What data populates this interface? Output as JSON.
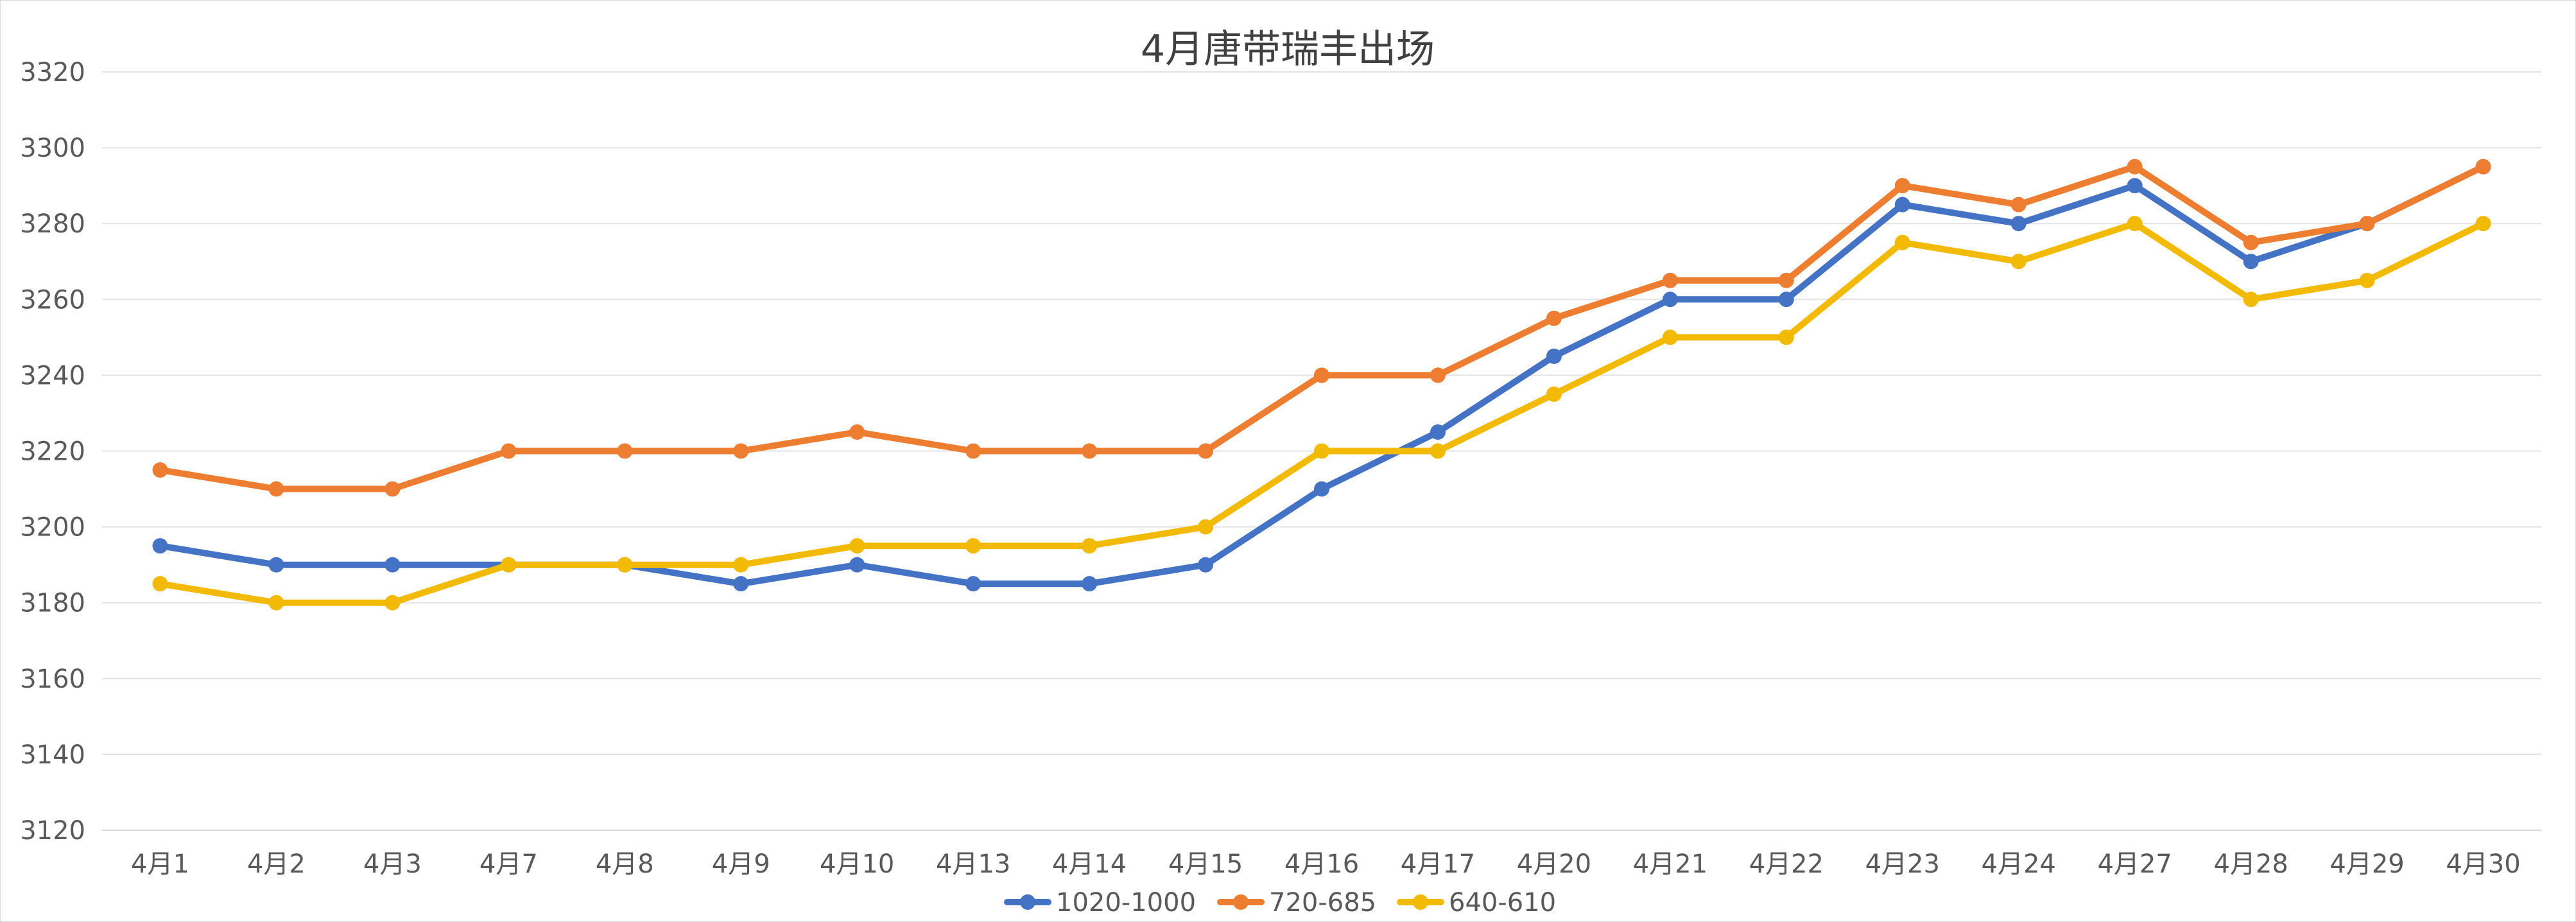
{
  "chart_data": {
    "type": "line",
    "title": "4月唐带瑞丰出场",
    "xlabel": "",
    "ylabel": "",
    "categories": [
      "4月1",
      "4月2",
      "4月3",
      "4月7",
      "4月8",
      "4月9",
      "4月10",
      "4月13",
      "4月14",
      "4月15",
      "4月16",
      "4月17",
      "4月20",
      "4月21",
      "4月22",
      "4月23",
      "4月24",
      "4月27",
      "4月28",
      "4月29",
      "4月30"
    ],
    "ylim": [
      3120,
      3320
    ],
    "yticks": [
      "3120",
      "3140",
      "3160",
      "3180",
      "3200",
      "3220",
      "3240",
      "3260",
      "3280",
      "3300",
      "3320"
    ],
    "grid": true,
    "legend_position": "bottom",
    "series": [
      {
        "name": "1020-1000",
        "color": "#4472C4",
        "values": [
          3195,
          3190,
          3190,
          3190,
          3190,
          3185,
          3190,
          3185,
          3185,
          3190,
          3210,
          3225,
          3245,
          3260,
          3260,
          3285,
          3280,
          3290,
          3270,
          3280,
          3295
        ]
      },
      {
        "name": "720-685",
        "color": "#ED7D31",
        "values": [
          3215,
          3210,
          3210,
          3220,
          3220,
          3220,
          3225,
          3220,
          3220,
          3220,
          3240,
          3240,
          3255,
          3265,
          3265,
          3290,
          3285,
          3295,
          3275,
          3280,
          3295
        ]
      },
      {
        "name": "640-610",
        "color": "#F2BA02",
        "values": [
          3185,
          3180,
          3180,
          3190,
          3190,
          3190,
          3195,
          3195,
          3195,
          3200,
          3220,
          3220,
          3235,
          3250,
          3250,
          3275,
          3270,
          3280,
          3260,
          3265,
          3280
        ]
      }
    ]
  }
}
